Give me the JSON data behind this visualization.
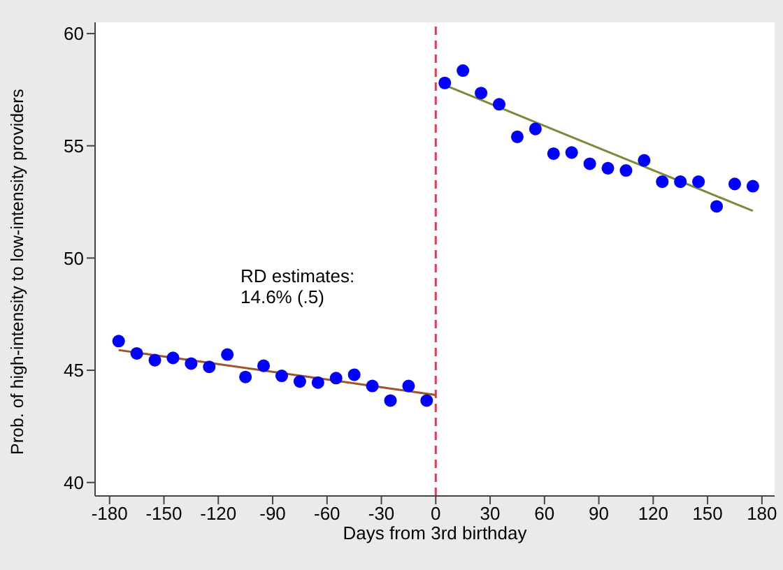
{
  "chart_data": {
    "type": "scatter",
    "xlabel": "Days from 3rd birthday",
    "ylabel": "Prob. of high-intensity to low-intensity providers",
    "xlim": [
      -188,
      187
    ],
    "ylim": [
      39.4,
      60.5
    ],
    "xticks": [
      -180,
      -150,
      -120,
      -90,
      -60,
      -30,
      0,
      30,
      60,
      90,
      120,
      150,
      180
    ],
    "yticks": [
      40,
      45,
      50,
      55,
      60
    ],
    "grid": false,
    "series": [
      {
        "color": "#0000ff",
        "marker": "circle",
        "x": [
          -175,
          -165,
          -155,
          -145,
          -135,
          -125,
          -115,
          -105,
          -95,
          -85,
          -75,
          -65,
          -55,
          -45,
          -35,
          -25,
          -15,
          -5
        ],
        "values": [
          46.3,
          45.75,
          45.45,
          45.55,
          45.3,
          45.15,
          45.7,
          44.7,
          45.2,
          44.75,
          44.5,
          44.45,
          44.65,
          44.8,
          44.3,
          43.65,
          44.3,
          43.65
        ]
      },
      {
        "color": "#0000ff",
        "marker": "circle",
        "x": [
          5,
          15,
          25,
          35,
          45,
          55,
          65,
          75,
          85,
          95,
          105,
          115,
          125,
          135,
          145,
          155,
          165,
          175
        ],
        "values": [
          57.8,
          58.35,
          57.35,
          56.85,
          55.4,
          55.75,
          54.65,
          54.7,
          54.2,
          54.0,
          53.9,
          54.35,
          53.4,
          53.4,
          53.4,
          52.3,
          53.3,
          53.2
        ]
      },
      {
        "type": "line",
        "color": "#a0522d",
        "marker": "none",
        "x": [
          -175,
          0
        ],
        "values": [
          45.9,
          43.9
        ]
      },
      {
        "type": "line",
        "color": "#7a8a3c",
        "marker": "none",
        "x": [
          5,
          175
        ],
        "values": [
          57.7,
          52.1
        ]
      }
    ],
    "ref_lines": [
      {
        "axis": "x",
        "value": 0,
        "color": "#e8384f",
        "line_style": "dashed"
      }
    ],
    "annotations": [
      "RD estimates:",
      "14.6% (.5)"
    ]
  }
}
